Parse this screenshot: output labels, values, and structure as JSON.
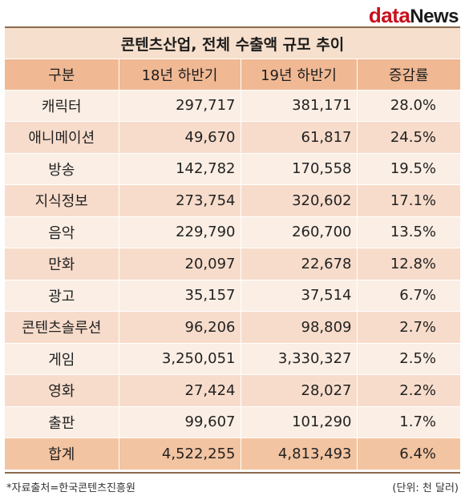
{
  "logo": {
    "part1": "data",
    "part2": "News"
  },
  "title": "콘텐츠산업, 전체 수출액 규모 추이",
  "headers": [
    "구분",
    "18년 하반기",
    "19년 하반기",
    "증감률"
  ],
  "rows": [
    {
      "category": "캐릭터",
      "y18": "297,717",
      "y19": "381,171",
      "change": "28.0%"
    },
    {
      "category": "애니메이션",
      "y18": "49,670",
      "y19": "61,817",
      "change": "24.5%"
    },
    {
      "category": "방송",
      "y18": "142,782",
      "y19": "170,558",
      "change": "19.5%"
    },
    {
      "category": "지식정보",
      "y18": "273,754",
      "y19": "320,602",
      "change": "17.1%"
    },
    {
      "category": "음악",
      "y18": "229,790",
      "y19": "260,700",
      "change": "13.5%"
    },
    {
      "category": "만화",
      "y18": "20,097",
      "y19": "22,678",
      "change": "12.8%"
    },
    {
      "category": "광고",
      "y18": "35,157",
      "y19": "37,514",
      "change": "6.7%"
    },
    {
      "category": "콘텐츠솔루션",
      "y18": "96,206",
      "y19": "98,809",
      "change": "2.7%"
    },
    {
      "category": "게임",
      "y18": "3,250,051",
      "y19": "3,330,327",
      "change": "2.5%"
    },
    {
      "category": "영화",
      "y18": "27,424",
      "y19": "28,027",
      "change": "2.2%"
    },
    {
      "category": "출판",
      "y18": "99,607",
      "y19": "101,290",
      "change": "1.7%"
    },
    {
      "category": "합계",
      "y18": "4,522,255",
      "y19": "4,813,493",
      "change": "6.4%"
    }
  ],
  "source": "*자료출처=한국콘텐츠진흥원",
  "unit": "(단위: 천 달러)"
}
